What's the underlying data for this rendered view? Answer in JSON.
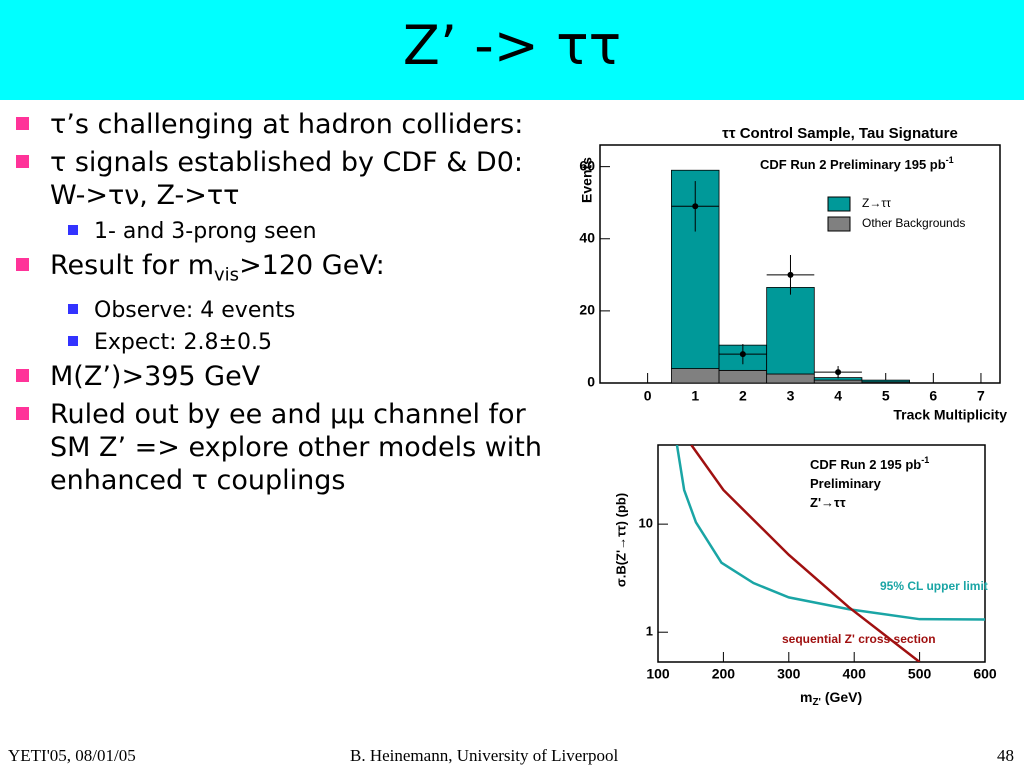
{
  "title": "Z’ -> ττ",
  "bullets": [
    {
      "text": "τ’s challenging at hadron colliders:"
    },
    {
      "text": "τ signals established by CDF & D0: W->τν, Z->ττ",
      "subbullets": [
        "1- and 3-prong seen"
      ]
    },
    {
      "text_parts": [
        "Result for m",
        "vis",
        ">120 GeV:"
      ],
      "subbullets": [
        "Observe: 4 events",
        "Expect: 2.8±0.5"
      ]
    },
    {
      "text": "M(Z’)>395 GeV"
    },
    {
      "text": "Ruled out by ee and μμ channel for SM Z’ => explore other models with enhanced τ couplings"
    }
  ],
  "footer": {
    "left": "YETI'05, 08/01/05",
    "center": "B. Heinemann, University of Liverpool",
    "right": "48"
  },
  "chart_data": [
    {
      "type": "histogram",
      "title": "ττ Control Sample, Tau Signature",
      "annotation": [
        "CDF Run 2 Preliminary 195 pb",
        "-1"
      ],
      "x_label": "Track Multiplicity",
      "y_label": "Events",
      "bins": [
        0.5,
        1.5,
        2.5,
        3.5,
        4.5,
        5.5
      ],
      "stacked": true,
      "series": [
        {
          "name": "Other Backgrounds",
          "color": "#808080",
          "values": [
            4,
            3.5,
            2.5,
            0.8,
            0.3
          ]
        },
        {
          "name": "Z→ττ",
          "color": "#009999",
          "values": [
            55,
            7,
            24,
            0.7,
            0.5
          ]
        }
      ],
      "points": {
        "x": [
          1,
          2,
          3,
          4
        ],
        "values": [
          49,
          8,
          30,
          3
        ],
        "errors": [
          7,
          2.8,
          5.5,
          1.7
        ],
        "xerr": 0.5
      },
      "xlim": [
        -1,
        7.4
      ],
      "ylim": [
        0,
        66
      ],
      "xticks": [
        0,
        1,
        2,
        3,
        4,
        5,
        6,
        7
      ],
      "yticks": [
        0,
        20,
        40,
        60
      ],
      "legend": "upper right"
    },
    {
      "type": "line",
      "log_y": true,
      "annotation": [
        [
          "CDF Run 2  195 pb",
          "-1"
        ],
        [
          "Preliminary"
        ],
        [
          "Z'→ττ"
        ]
      ],
      "x_label": [
        "m",
        "Z'",
        "  (GeV)"
      ],
      "y_label": "σ.B(Z'→ττ)  (pb)",
      "series": [
        {
          "name": "95% CL upper limit",
          "color": "#1aa5a5",
          "x": [
            129,
            140,
            158,
            197,
            246,
            300,
            392,
            500,
            600
          ],
          "values": [
            54,
            20.7,
            10.4,
            4.4,
            2.85,
            2.1,
            1.63,
            1.32,
            1.31
          ]
        },
        {
          "name": "sequential Z' cross section",
          "color": "#a01010",
          "x": [
            151,
            200,
            300,
            392,
            500
          ],
          "values": [
            54,
            20.7,
            5.2,
            1.7,
            0.53
          ]
        }
      ],
      "xlim": [
        100,
        600
      ],
      "ylim": [
        0.53,
        54
      ],
      "xticks": [
        100,
        200,
        300,
        400,
        500,
        600
      ],
      "yticks": [
        1,
        10
      ]
    }
  ]
}
